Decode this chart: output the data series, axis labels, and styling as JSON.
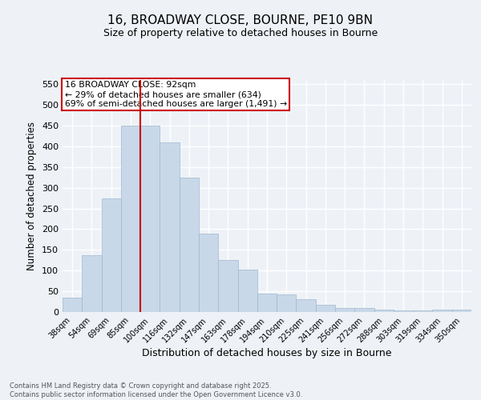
{
  "title_line1": "16, BROADWAY CLOSE, BOURNE, PE10 9BN",
  "title_line2": "Size of property relative to detached houses in Bourne",
  "xlabel": "Distribution of detached houses by size in Bourne",
  "ylabel": "Number of detached properties",
  "categories": [
    "38sqm",
    "54sqm",
    "69sqm",
    "85sqm",
    "100sqm",
    "116sqm",
    "132sqm",
    "147sqm",
    "163sqm",
    "178sqm",
    "194sqm",
    "210sqm",
    "225sqm",
    "241sqm",
    "256sqm",
    "272sqm",
    "288sqm",
    "303sqm",
    "319sqm",
    "334sqm",
    "350sqm"
  ],
  "values": [
    35,
    137,
    275,
    450,
    450,
    410,
    325,
    190,
    125,
    103,
    45,
    43,
    30,
    18,
    9,
    10,
    5,
    4,
    4,
    5,
    6
  ],
  "bar_color": "#c8d8e8",
  "bar_edge_color": "#a0b8d0",
  "red_line_x": 3.5,
  "ylim": [
    0,
    560
  ],
  "yticks": [
    0,
    50,
    100,
    150,
    200,
    250,
    300,
    350,
    400,
    450,
    500,
    550
  ],
  "annotation_text": "16 BROADWAY CLOSE: 92sqm\n← 29% of detached houses are smaller (634)\n69% of semi-detached houses are larger (1,491) →",
  "annotation_box_color": "#ffffff",
  "annotation_box_edge": "#cc0000",
  "footer_line1": "Contains HM Land Registry data © Crown copyright and database right 2025.",
  "footer_line2": "Contains public sector information licensed under the Open Government Licence v3.0.",
  "background_color": "#eef2f7",
  "grid_color": "#ffffff"
}
